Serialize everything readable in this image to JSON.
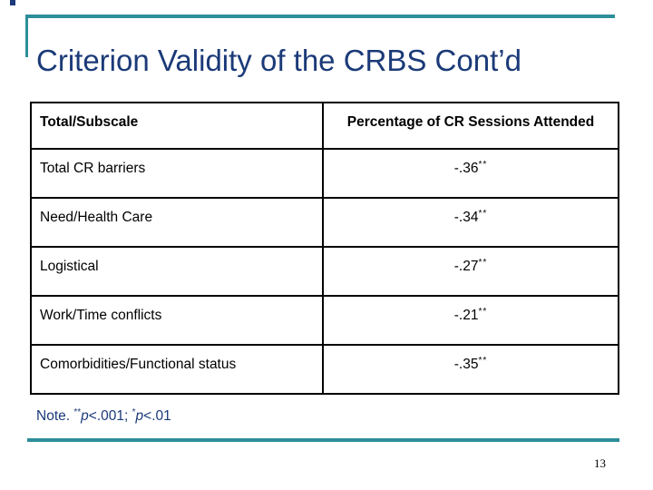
{
  "title": "Criterion Validity of the CRBS Cont’d",
  "table": {
    "headers": {
      "col1": "Total/Subscale",
      "col2": "Percentage of CR Sessions Attended"
    },
    "rows": [
      {
        "label": "Total CR barriers",
        "value": "-.36",
        "stars": "**"
      },
      {
        "label": "Need/Health Care",
        "value": "-.34",
        "stars": "**"
      },
      {
        "label": "Logistical",
        "value": "-.27",
        "stars": "**"
      },
      {
        "label": "Work/Time conflicts",
        "value": "-.21",
        "stars": "**"
      },
      {
        "label": "Comorbidities/Functional status",
        "value": "-.35",
        "stars": "**"
      }
    ]
  },
  "note": {
    "prefix": "Note. ",
    "sig1_stars": "**",
    "sig1_p": "p",
    "sig1_tail": "<.001; ",
    "sig2_stars": "*",
    "sig2_p": "p",
    "sig2_tail": "<.01"
  },
  "page_number": "13",
  "colors": {
    "accent_teal": "#2d8f99",
    "title_navy": "#1b3a78",
    "table_border": "#000000",
    "background": "#ffffff"
  }
}
